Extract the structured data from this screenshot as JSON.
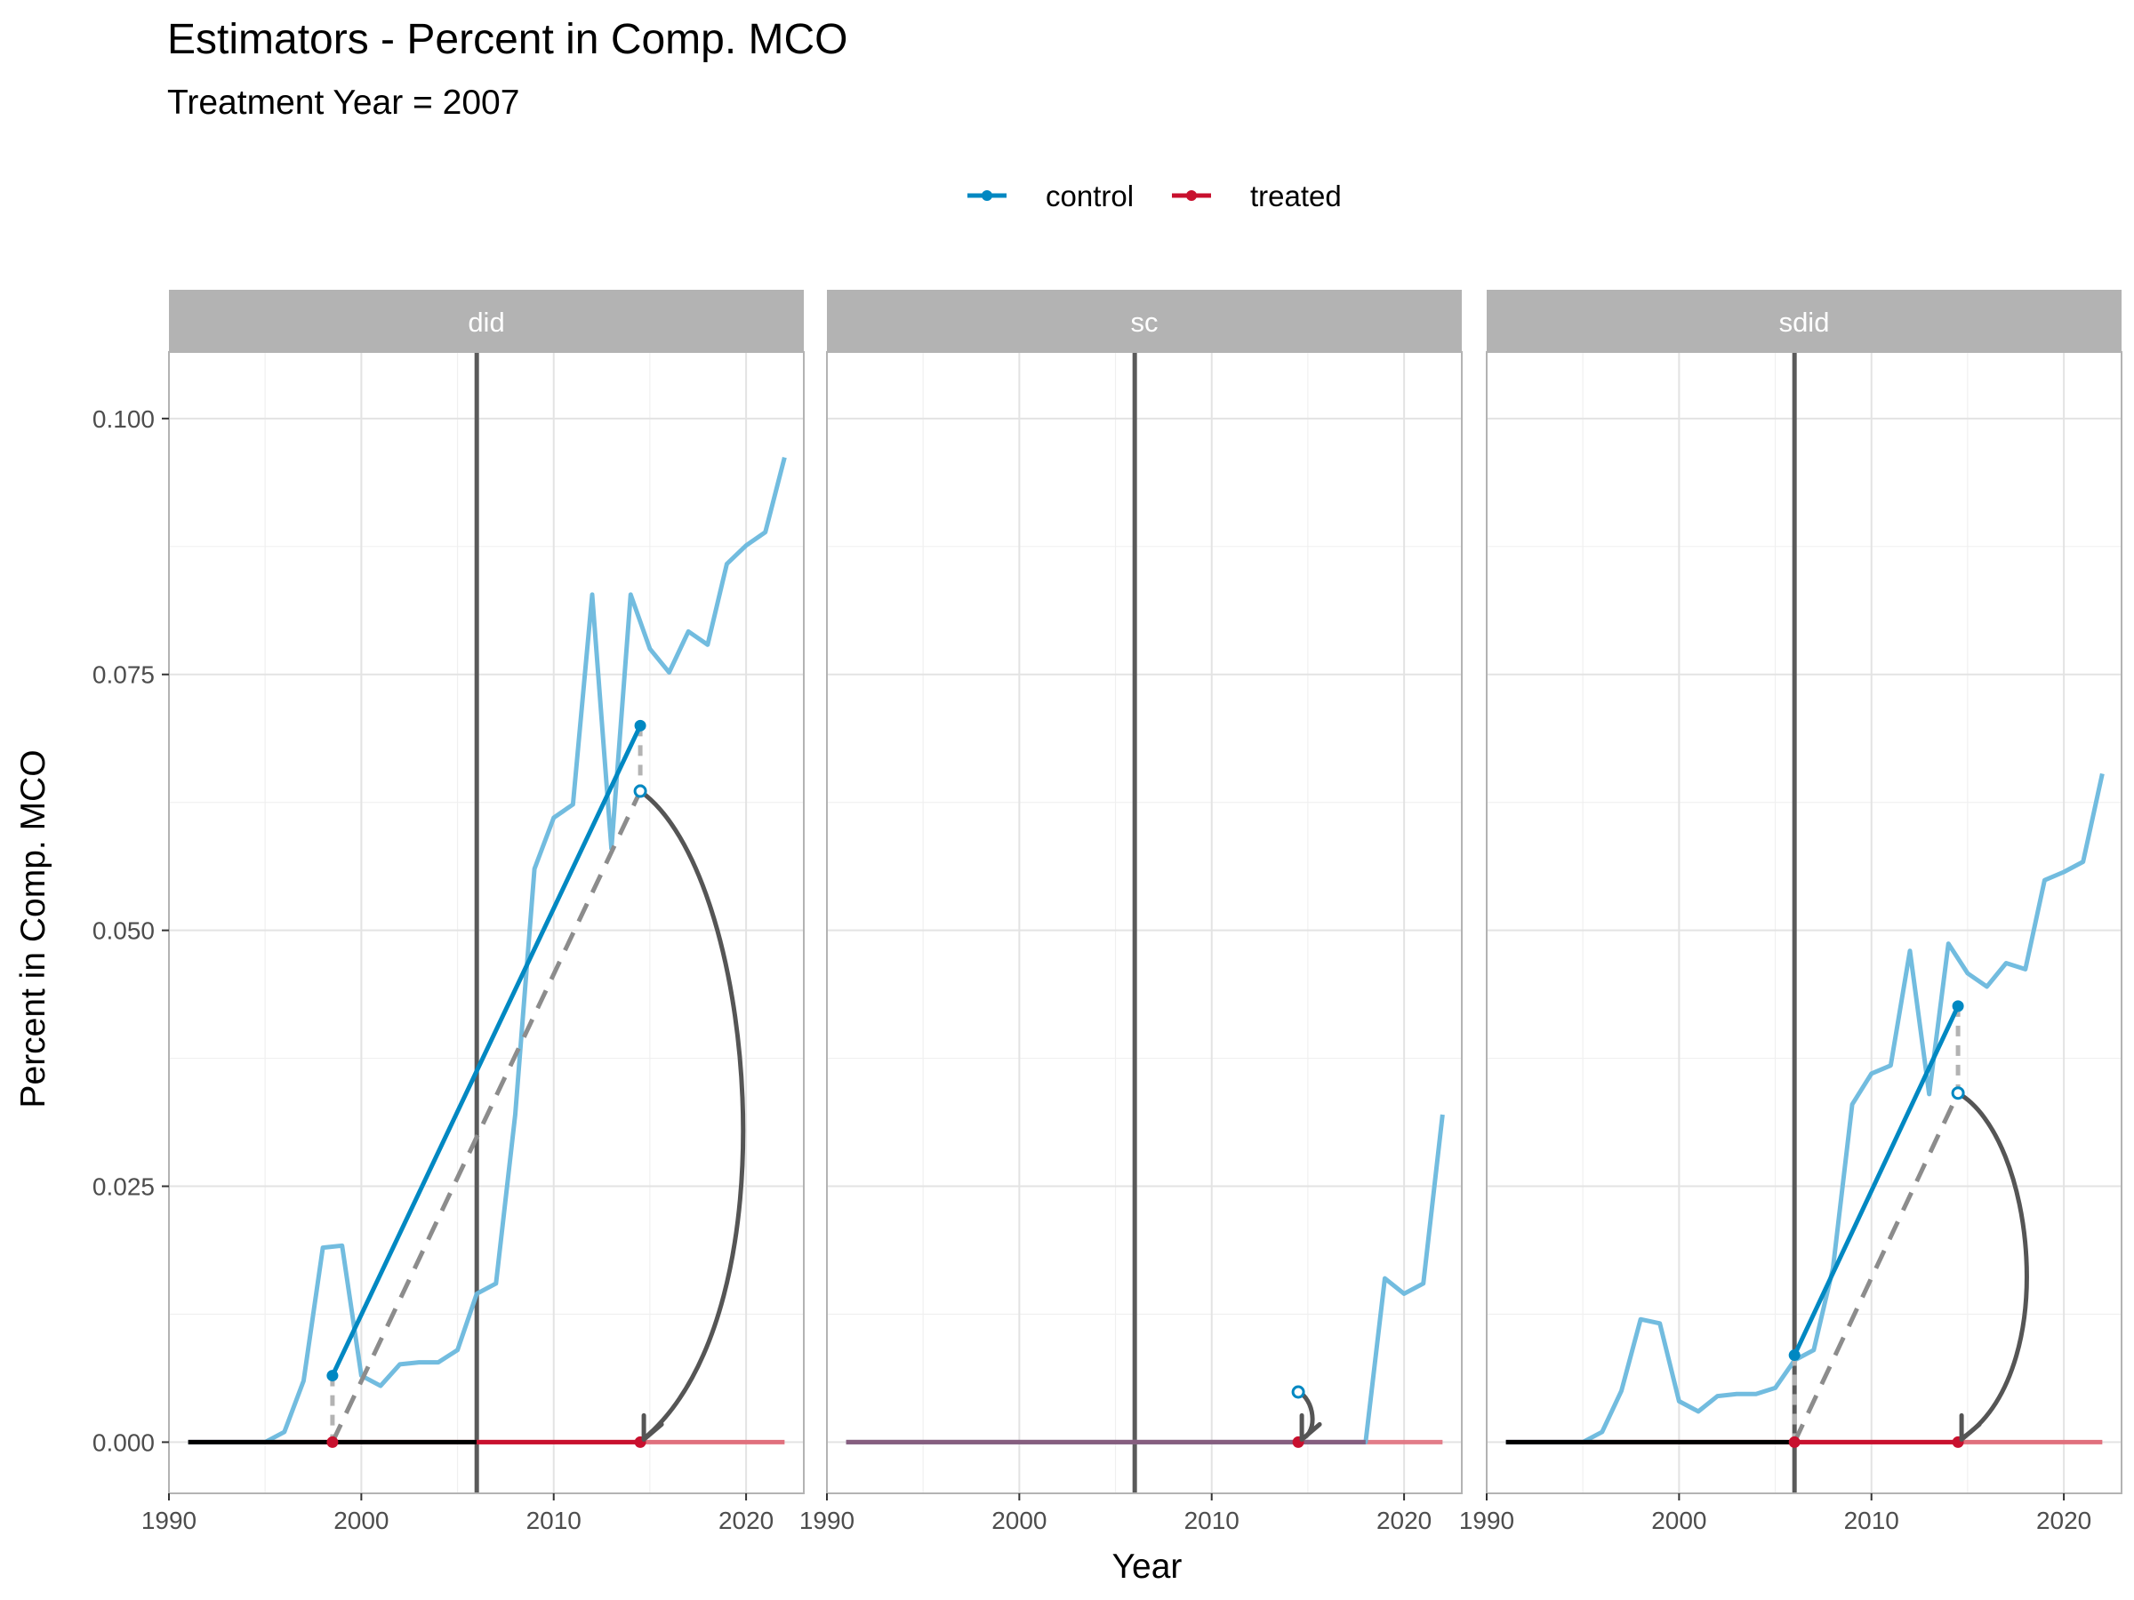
{
  "chart_data": {
    "type": "line",
    "title": "Estimators - Percent in Comp. MCO",
    "subtitle": "Treatment Year = 2007",
    "xlabel": "Year",
    "ylabel": "Percent in Comp. MCO",
    "xlim": [
      1990,
      2023
    ],
    "ylim": [
      -0.005,
      0.1065
    ],
    "x_ticks": [
      1990,
      2000,
      2010,
      2020
    ],
    "y_ticks": [
      0.0,
      0.025,
      0.05,
      0.075,
      0.1
    ],
    "y_tick_labels": [
      "0.000",
      "0.025",
      "0.050",
      "0.075",
      "0.100"
    ],
    "grid": true,
    "legend_position": "top",
    "legend": [
      {
        "name": "control",
        "color": "#0088c2"
      },
      {
        "name": "treated",
        "color": "#c8102e"
      }
    ],
    "treatment_line_year": 2006,
    "colors": {
      "control_line": "#6ab8dd",
      "control_fit": "#0088c2",
      "treated": "#c8102e",
      "treated_light": "#e0707d",
      "pre_period": "#000000",
      "vline": "#5a5a5a",
      "arrow": "#555555",
      "dashed": "#8c8c8c",
      "strip": "#b3b3b3"
    },
    "panels": [
      {
        "name": "did",
        "control_series": {
          "x": [
            1991,
            1992,
            1993,
            1994,
            1995,
            1996,
            1997,
            1998,
            1999,
            2000,
            2001,
            2002,
            2003,
            2004,
            2005,
            2006,
            2007,
            2008,
            2009,
            2010,
            2011,
            2012,
            2013,
            2014,
            2015,
            2016,
            2017,
            2018,
            2019,
            2020,
            2021,
            2022
          ],
          "y": [
            0,
            0,
            0,
            0,
            0,
            0.001,
            0.006,
            0.019,
            0.0192,
            0.0065,
            0.0055,
            0.0076,
            0.0078,
            0.0078,
            0.009,
            0.0145,
            0.0155,
            0.032,
            0.056,
            0.061,
            0.0623,
            0.0828,
            0.058,
            0.0828,
            0.0775,
            0.0752,
            0.0792,
            0.0779,
            0.0858,
            0.0876,
            0.0889,
            0.0962
          ]
        },
        "treated_series": {
          "x": [
            1991,
            2022
          ],
          "y": [
            0,
            0
          ]
        },
        "pre_period_segment": {
          "x": [
            1991,
            2006
          ],
          "y": [
            0,
            0
          ]
        },
        "post_period_segment": {
          "x": [
            2006,
            2014.5
          ],
          "y": [
            0,
            0
          ]
        },
        "control_fit": {
          "x": [
            1998.5,
            2014.5
          ],
          "y": [
            0.0065,
            0.07
          ]
        },
        "treated_fit": {
          "x": [
            1998.5,
            2014.5
          ],
          "y": [
            0,
            0
          ]
        },
        "counterfactual": {
          "x": [
            1998.5,
            2014.5
          ],
          "y": [
            0,
            0.0636
          ]
        },
        "counterfactual_point": {
          "x": 2014.5,
          "y": 0.0636
        },
        "arrow": {
          "from": [
            2014.5,
            0.0636
          ],
          "to": [
            2014.5,
            0.0
          ],
          "curve": "right",
          "bulge_year": 2020.5
        }
      },
      {
        "name": "sc",
        "control_series": {
          "x": [
            1991,
            1992,
            1993,
            1994,
            1995,
            1996,
            1997,
            1998,
            1999,
            2000,
            2001,
            2002,
            2003,
            2004,
            2005,
            2006,
            2007,
            2008,
            2009,
            2010,
            2011,
            2012,
            2013,
            2014,
            2015,
            2016,
            2017,
            2018,
            2019,
            2020,
            2021,
            2022
          ],
          "y": [
            0,
            0,
            0,
            0,
            0,
            0,
            0,
            0,
            0,
            0,
            0,
            0,
            0,
            0,
            0,
            0,
            0,
            0,
            0,
            0,
            0,
            0,
            0,
            0,
            0,
            0,
            0,
            0,
            0.016,
            0.0145,
            0.0155,
            0.032
          ]
        },
        "treated_series": {
          "x": [
            1991,
            2022
          ],
          "y": [
            0,
            0
          ]
        },
        "counterfactual_point": {
          "x": 2014.5,
          "y": 0.0049
        },
        "treated_point": {
          "x": 2014.5,
          "y": 0
        },
        "arrow": {
          "from": [
            2014.5,
            0.0049
          ],
          "to": [
            2014.5,
            0.0
          ],
          "curve": "right",
          "bulge_year": 2015.3
        }
      },
      {
        "name": "sdid",
        "control_series": {
          "x": [
            1991,
            1992,
            1993,
            1994,
            1995,
            1996,
            1997,
            1998,
            1999,
            2000,
            2001,
            2002,
            2003,
            2004,
            2005,
            2006,
            2007,
            2008,
            2009,
            2010,
            2011,
            2012,
            2013,
            2014,
            2015,
            2016,
            2017,
            2018,
            2019,
            2020,
            2021,
            2022
          ],
          "y": [
            0,
            0,
            0,
            0,
            0,
            0.001,
            0.005,
            0.012,
            0.0116,
            0.004,
            0.003,
            0.0045,
            0.0047,
            0.0047,
            0.0053,
            0.008,
            0.009,
            0.017,
            0.033,
            0.036,
            0.0368,
            0.048,
            0.034,
            0.0487,
            0.0458,
            0.0445,
            0.0468,
            0.0462,
            0.0549,
            0.0557,
            0.0567,
            0.0653
          ]
        },
        "treated_series": {
          "x": [
            1991,
            2022
          ],
          "y": [
            0,
            0
          ]
        },
        "pre_period_segment": {
          "x": [
            1991,
            2006
          ],
          "y": [
            0,
            0
          ]
        },
        "post_period_segment": {
          "x": [
            2006,
            2014.5
          ],
          "y": [
            0,
            0
          ]
        },
        "control_fit": {
          "x": [
            2006,
            2014.5
          ],
          "y": [
            0.0085,
            0.0426
          ]
        },
        "treated_fit": {
          "x": [
            2006,
            2014.5
          ],
          "y": [
            0,
            0
          ]
        },
        "counterfactual": {
          "x": [
            2006,
            2014.5
          ],
          "y": [
            0,
            0.0341
          ]
        },
        "counterfactual_point": {
          "x": 2014.5,
          "y": 0.0341
        },
        "arrow": {
          "from": [
            2014.5,
            0.0341
          ],
          "to": [
            2014.5,
            0.0
          ],
          "curve": "right",
          "bulge_year": 2018.5
        }
      }
    ]
  }
}
